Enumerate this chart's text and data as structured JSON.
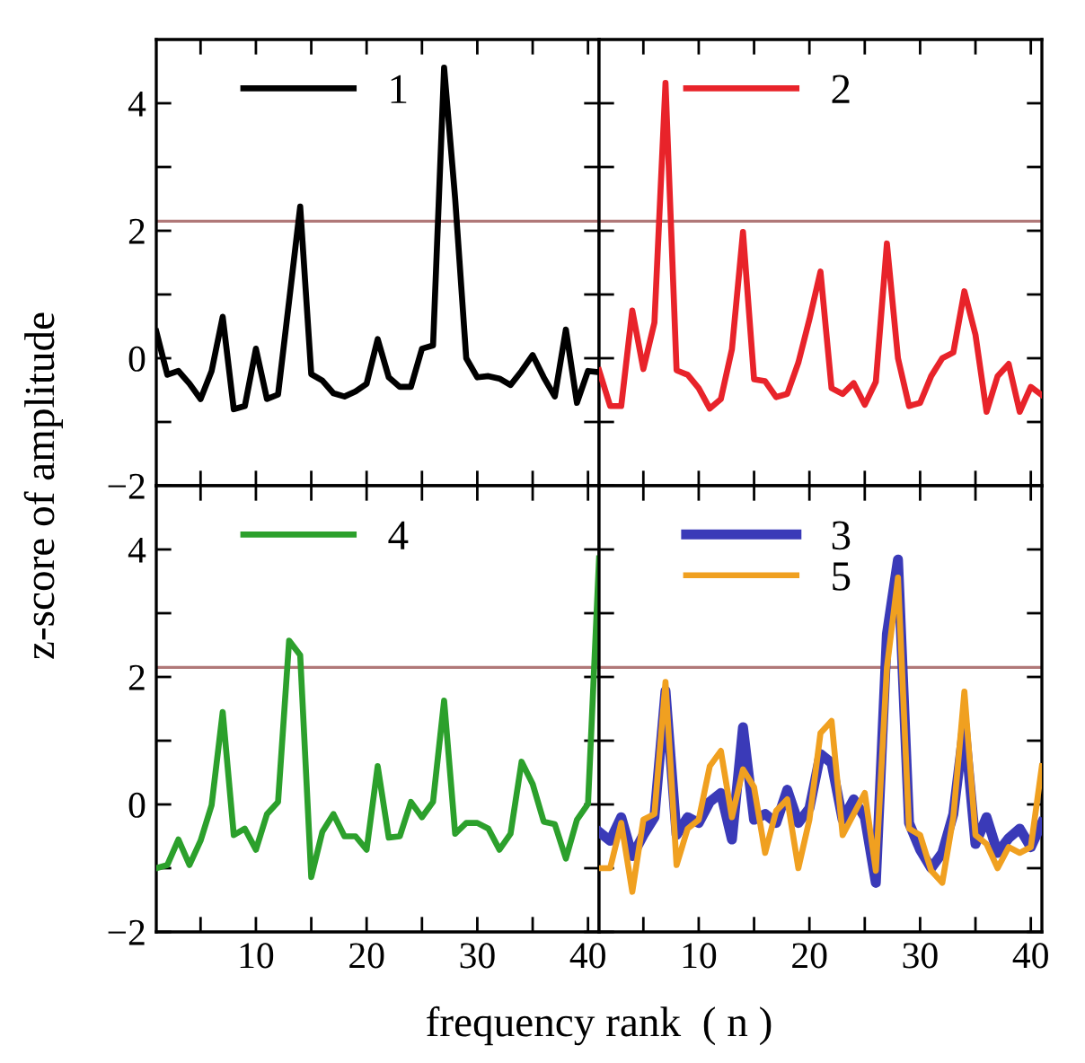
{
  "chart_data": [
    {
      "type": "line",
      "x": [
        1,
        2,
        3,
        4,
        5,
        6,
        7,
        8,
        9,
        10,
        11,
        12,
        13,
        14,
        15,
        16,
        17,
        18,
        19,
        20,
        21,
        22,
        23,
        24,
        25,
        26,
        27,
        28,
        29,
        30,
        31,
        32,
        33,
        34,
        35,
        36,
        37,
        38,
        39,
        40,
        41
      ],
      "ylabel": "z-score of amplitude",
      "xlim": [
        1,
        41
      ],
      "ylim": [
        -2,
        5
      ],
      "xticks": [
        {
          "value": 5,
          "label": null
        },
        {
          "value": 10,
          "label": null
        },
        {
          "value": 15,
          "label": null
        },
        {
          "value": 20,
          "label": null
        },
        {
          "value": 25,
          "label": null
        },
        {
          "value": 30,
          "label": null
        },
        {
          "value": 35,
          "label": null
        },
        {
          "value": 40,
          "label": null
        }
      ],
      "yticks": [
        {
          "value": -2,
          "label": "−2"
        },
        {
          "value": -1,
          "label": null
        },
        0,
        {
          "value": 1,
          "label": null
        },
        2,
        {
          "value": 3,
          "label": null
        },
        4
      ],
      "tick_labels": "y",
      "legend": "top left",
      "grid": false,
      "ref_lines": [
        {
          "axis": "y",
          "value": 2.15,
          "color": "#b07878"
        }
      ],
      "series": [
        {
          "name": "1",
          "color": "#000000",
          "values": [
            0.42,
            -0.26,
            -0.2,
            -0.4,
            -0.64,
            -0.2,
            0.65,
            -0.8,
            -0.75,
            0.15,
            -0.64,
            -0.57,
            0.9,
            2.38,
            -0.25,
            -0.35,
            -0.55,
            -0.6,
            -0.52,
            -0.4,
            0.3,
            -0.3,
            -0.45,
            -0.45,
            0.15,
            0.2,
            4.56,
            2.5,
            0.0,
            -0.3,
            -0.28,
            -0.32,
            -0.42,
            -0.2,
            0.05,
            -0.3,
            -0.6,
            0.45,
            -0.7,
            -0.2,
            -0.22
          ]
        }
      ]
    },
    {
      "type": "line",
      "x": [
        1,
        2,
        3,
        4,
        5,
        6,
        7,
        8,
        9,
        10,
        11,
        12,
        13,
        14,
        15,
        16,
        17,
        18,
        19,
        20,
        21,
        22,
        23,
        24,
        25,
        26,
        27,
        28,
        29,
        30,
        31,
        32,
        33,
        34,
        35,
        36,
        37,
        38,
        39,
        40,
        41
      ],
      "xlim": [
        1,
        41
      ],
      "ylim": [
        -2,
        5
      ],
      "xticks": [
        {
          "value": 5,
          "label": null
        },
        {
          "value": 10,
          "label": null
        },
        {
          "value": 15,
          "label": null
        },
        {
          "value": 20,
          "label": null
        },
        {
          "value": 25,
          "label": null
        },
        {
          "value": 30,
          "label": null
        },
        {
          "value": 35,
          "label": null
        },
        {
          "value": 40,
          "label": null
        }
      ],
      "yticks": [
        {
          "value": -2,
          "label": null
        },
        {
          "value": -1,
          "label": null
        },
        {
          "value": 0,
          "label": null
        },
        {
          "value": 1,
          "label": null
        },
        {
          "value": 2,
          "label": null
        },
        {
          "value": 3,
          "label": null
        },
        {
          "value": 4,
          "label": null
        }
      ],
      "tick_labels": false,
      "legend": "top left",
      "grid": false,
      "ref_lines": [
        {
          "axis": "y",
          "value": 2.15,
          "color": "#b07878"
        }
      ],
      "series": [
        {
          "name": "2",
          "color": "#e8232a",
          "values": [
            -0.19,
            -0.75,
            -0.75,
            0.75,
            -0.17,
            0.56,
            4.32,
            -0.19,
            -0.26,
            -0.47,
            -0.79,
            -0.64,
            0.14,
            1.98,
            -0.33,
            -0.36,
            -0.61,
            -0.56,
            -0.07,
            0.61,
            1.36,
            -0.47,
            -0.56,
            -0.39,
            -0.73,
            -0.37,
            1.8,
            0.0,
            -0.75,
            -0.7,
            -0.28,
            0.0,
            0.09,
            1.05,
            0.37,
            -0.84,
            -0.28,
            -0.09,
            -0.84,
            -0.45,
            -0.58
          ]
        }
      ]
    },
    {
      "type": "line",
      "x": [
        1,
        2,
        3,
        4,
        5,
        6,
        7,
        8,
        9,
        10,
        11,
        12,
        13,
        14,
        15,
        16,
        17,
        18,
        19,
        20,
        21,
        22,
        23,
        24,
        25,
        26,
        27,
        28,
        29,
        30,
        31,
        32,
        33,
        34,
        35,
        36,
        37,
        38,
        39,
        40,
        41
      ],
      "xlabel": "frequency rank  ( n )",
      "xlim": [
        1,
        41
      ],
      "ylim": [
        -2,
        5
      ],
      "xticks": [
        {
          "value": 5,
          "label": null
        },
        10,
        {
          "value": 15,
          "label": null
        },
        20,
        {
          "value": 25,
          "label": null
        },
        30,
        {
          "value": 35,
          "label": null
        },
        40
      ],
      "yticks": [
        {
          "value": -2,
          "label": "−2"
        },
        {
          "value": -1,
          "label": null
        },
        0,
        {
          "value": 1,
          "label": null
        },
        2,
        {
          "value": 3,
          "label": null
        },
        4
      ],
      "legend": "top left",
      "grid": false,
      "ref_lines": [
        {
          "axis": "y",
          "value": 2.15,
          "color": "#b07878"
        }
      ],
      "series": [
        {
          "name": "4",
          "color": "#2ca02c",
          "values": [
            -1.0,
            -0.95,
            -0.55,
            -0.95,
            -0.57,
            -0.01,
            1.45,
            -0.48,
            -0.38,
            -0.71,
            -0.15,
            0.04,
            2.57,
            2.34,
            -1.14,
            -0.43,
            -0.15,
            -0.5,
            -0.5,
            -0.71,
            0.6,
            -0.52,
            -0.5,
            0.04,
            -0.2,
            0.04,
            1.63,
            -0.46,
            -0.29,
            -0.29,
            -0.38,
            -0.71,
            -0.46,
            0.67,
            0.32,
            -0.27,
            -0.31,
            -0.85,
            -0.24,
            0.01,
            3.86
          ]
        }
      ]
    },
    {
      "type": "line",
      "x": [
        1,
        2,
        3,
        4,
        5,
        6,
        7,
        8,
        9,
        10,
        11,
        12,
        13,
        14,
        15,
        16,
        17,
        18,
        19,
        20,
        21,
        22,
        23,
        24,
        25,
        26,
        27,
        28,
        29,
        30,
        31,
        32,
        33,
        34,
        35,
        36,
        37,
        38,
        39,
        40,
        41
      ],
      "xlim": [
        1,
        41
      ],
      "ylim": [
        -2,
        5
      ],
      "xticks": [
        {
          "value": 5,
          "label": null
        },
        10,
        {
          "value": 15,
          "label": null
        },
        20,
        {
          "value": 25,
          "label": null
        },
        30,
        {
          "value": 35,
          "label": null
        },
        40
      ],
      "yticks": [
        {
          "value": -2,
          "label": null
        },
        {
          "value": -1,
          "label": null
        },
        {
          "value": 0,
          "label": null
        },
        {
          "value": 1,
          "label": null
        },
        {
          "value": 2,
          "label": null
        },
        {
          "value": 3,
          "label": null
        },
        {
          "value": 4,
          "label": null
        }
      ],
      "tick_labels": "x",
      "legend": "top left",
      "grid": false,
      "ref_lines": [
        {
          "axis": "y",
          "value": 2.15,
          "color": "#b07878"
        }
      ],
      "series": [
        {
          "name": "3",
          "color": "#3a3ab8",
          "values": [
            -0.43,
            -0.57,
            -0.2,
            -0.81,
            -0.48,
            -0.2,
            1.78,
            -0.48,
            -0.2,
            -0.29,
            0.04,
            0.18,
            -0.55,
            1.21,
            -0.24,
            -0.15,
            -0.29,
            0.23,
            -0.29,
            -0.06,
            0.79,
            0.65,
            -0.24,
            0.08,
            -0.2,
            -1.23,
            2.67,
            3.84,
            -0.29,
            -0.71,
            -1.0,
            -0.76,
            -0.15,
            1.26,
            -0.62,
            -0.2,
            -0.76,
            -0.53,
            -0.38,
            -0.67,
            -0.29
          ]
        },
        {
          "name": "5",
          "color": "#f0a020",
          "values": [
            -1.0,
            -1.0,
            -0.29,
            -1.37,
            -0.24,
            -0.15,
            1.92,
            -0.95,
            -0.38,
            -0.24,
            0.6,
            0.84,
            -0.2,
            0.55,
            0.27,
            -0.76,
            -0.1,
            0.08,
            -1.0,
            -0.24,
            1.12,
            1.31,
            -0.48,
            -0.15,
            0.18,
            -1.04,
            2.15,
            3.56,
            -0.38,
            -0.48,
            -1.04,
            -1.23,
            -0.2,
            1.77,
            -0.48,
            -0.62,
            -1.0,
            -0.67,
            -0.76,
            -0.67,
            0.6
          ]
        }
      ]
    }
  ]
}
